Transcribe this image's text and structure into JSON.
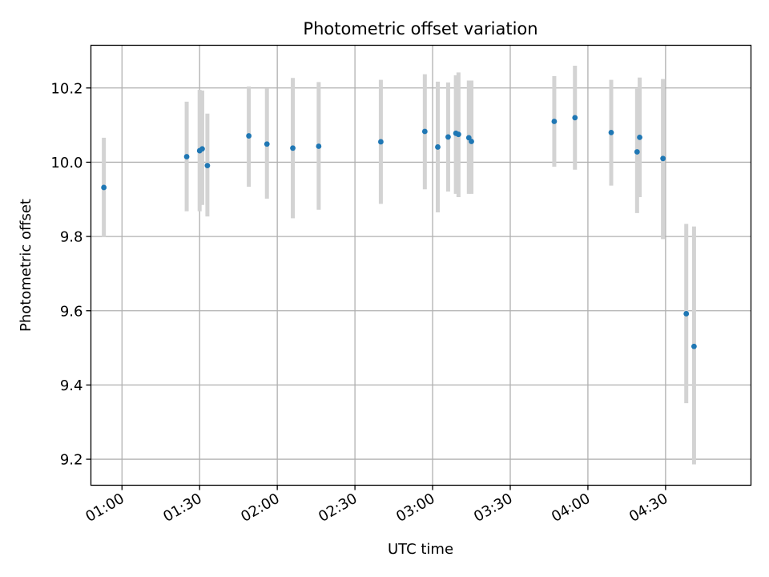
{
  "chart_data": {
    "type": "scatter",
    "title": "Photometric offset variation",
    "xlabel": "UTC time",
    "ylabel": "Photometric offset",
    "xlim": [
      "00:48",
      "05:03"
    ],
    "ylim": [
      9.13,
      10.315
    ],
    "grid": true,
    "x_ticks": [
      "01:00",
      "01:30",
      "02:00",
      "02:30",
      "03:00",
      "03:30",
      "04:00",
      "04:30"
    ],
    "y_ticks": [
      "9.2",
      "9.4",
      "9.6",
      "9.8",
      "10.0",
      "10.2"
    ],
    "colors": {
      "point": "#1f77b4",
      "errorbar": "#d3d3d3",
      "grid": "#b0b0b0",
      "axes": "#000000"
    },
    "series": [
      {
        "points": [
          {
            "x": "00:53",
            "y": 9.932,
            "yerr": [
              9.798,
              10.066
            ]
          },
          {
            "x": "01:25",
            "y": 10.015,
            "yerr": [
              9.868,
              10.163
            ]
          },
          {
            "x": "01:30",
            "y": 10.031,
            "yerr": [
              9.868,
              10.195
            ]
          },
          {
            "x": "01:31",
            "y": 10.036,
            "yerr": [
              9.885,
              10.193
            ]
          },
          {
            "x": "01:33",
            "y": 9.991,
            "yerr": [
              9.854,
              10.131
            ]
          },
          {
            "x": "01:49",
            "y": 10.071,
            "yerr": [
              9.934,
              10.204
            ]
          },
          {
            "x": "01:56",
            "y": 10.049,
            "yerr": [
              9.902,
              10.199
            ]
          },
          {
            "x": "02:06",
            "y": 10.038,
            "yerr": [
              9.849,
              10.227
            ]
          },
          {
            "x": "02:16",
            "y": 10.043,
            "yerr": [
              9.872,
              10.216
            ]
          },
          {
            "x": "02:40",
            "y": 10.055,
            "yerr": [
              9.888,
              10.222
            ]
          },
          {
            "x": "02:57",
            "y": 10.083,
            "yerr": [
              9.927,
              10.237
            ]
          },
          {
            "x": "03:02",
            "y": 10.041,
            "yerr": [
              9.865,
              10.217
            ]
          },
          {
            "x": "03:06",
            "y": 10.068,
            "yerr": [
              9.921,
              10.215
            ]
          },
          {
            "x": "03:09",
            "y": 10.078,
            "yerr": [
              9.915,
              10.234
            ]
          },
          {
            "x": "03:10",
            "y": 10.075,
            "yerr": [
              9.906,
              10.242
            ]
          },
          {
            "x": "03:14",
            "y": 10.066,
            "yerr": [
              9.915,
              10.22
            ]
          },
          {
            "x": "03:15",
            "y": 10.056,
            "yerr": [
              9.915,
              10.22
            ]
          },
          {
            "x": "03:47",
            "y": 10.11,
            "yerr": [
              9.988,
              10.232
            ]
          },
          {
            "x": "03:55",
            "y": 10.12,
            "yerr": [
              9.98,
              10.26
            ]
          },
          {
            "x": "04:09",
            "y": 10.08,
            "yerr": [
              9.937,
              10.222
            ]
          },
          {
            "x": "04:19",
            "y": 10.028,
            "yerr": [
              9.863,
              10.198
            ]
          },
          {
            "x": "04:20",
            "y": 10.067,
            "yerr": [
              9.906,
              10.228
            ]
          },
          {
            "x": "04:29",
            "y": 10.01,
            "yerr": [
              9.793,
              10.224
            ]
          },
          {
            "x": "04:38",
            "y": 9.592,
            "yerr": [
              9.351,
              9.834
            ]
          },
          {
            "x": "04:41",
            "y": 9.504,
            "yerr": [
              9.186,
              9.827
            ]
          }
        ]
      }
    ]
  }
}
